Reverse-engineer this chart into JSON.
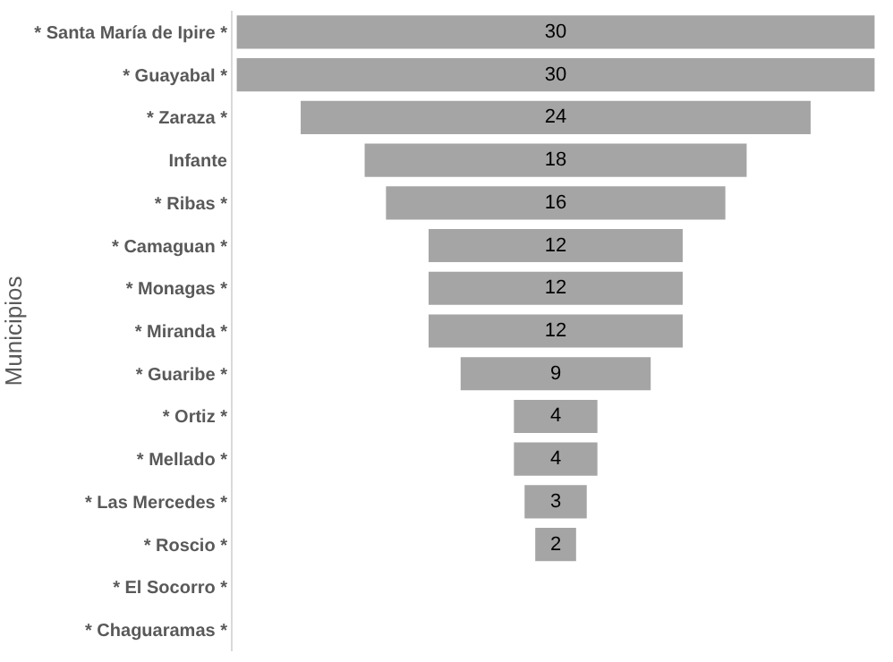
{
  "chart_data": {
    "type": "other",
    "ylabel": "Municipios",
    "categories": [
      "* Santa María de Ipire *",
      "* Guayabal *",
      "* Zaraza *",
      "Infante",
      "* Ribas *",
      "* Camaguan *",
      "* Monagas *",
      "* Miranda *",
      "* Guaribe *",
      "* Ortiz *",
      "* Mellado *",
      "* Las Mercedes *",
      "* Roscio *",
      "* El Socorro *",
      "* Chaguaramas *"
    ],
    "values": [
      30,
      30,
      24,
      18,
      16,
      12,
      12,
      12,
      9,
      4,
      4,
      3,
      2,
      null,
      null
    ],
    "color": "#a5a5a5",
    "data_labels": true
  }
}
